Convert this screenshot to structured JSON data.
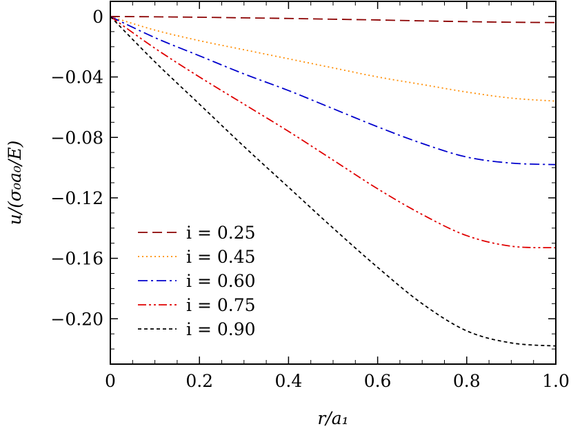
{
  "chart_data": {
    "type": "line",
    "title": "",
    "xlabel": "r/a₁",
    "ylabel": "u/(σ₀a₀/E)",
    "xlim": [
      0,
      1.0
    ],
    "ylim": [
      -0.23,
      0.01
    ],
    "grid": false,
    "legend_position": "bottom-left",
    "x_ticks": [
      {
        "value": 0,
        "label": "0"
      },
      {
        "value": 0.2,
        "label": "0.2"
      },
      {
        "value": 0.4,
        "label": "0.4"
      },
      {
        "value": 0.6,
        "label": "0.6"
      },
      {
        "value": 0.8,
        "label": "0.8"
      },
      {
        "value": 1.0,
        "label": "1.0"
      }
    ],
    "y_ticks": [
      {
        "value": 0,
        "label": "0"
      },
      {
        "value": -0.04,
        "label": "−0.04"
      },
      {
        "value": -0.08,
        "label": "−0.08"
      },
      {
        "value": -0.12,
        "label": "−0.12"
      },
      {
        "value": -0.16,
        "label": "−0.16"
      },
      {
        "value": -0.2,
        "label": "−0.20"
      }
    ],
    "x": [
      0,
      0.1,
      0.2,
      0.3,
      0.4,
      0.5,
      0.6,
      0.7,
      0.8,
      0.9,
      1.0
    ],
    "series": [
      {
        "name": "i = 0.25",
        "color": "#8b0000",
        "dash": "dashed",
        "values": [
          0,
          -0.0002,
          -0.0005,
          -0.0009,
          -0.0013,
          -0.0018,
          -0.0023,
          -0.0029,
          -0.0034,
          -0.0038,
          -0.004
        ]
      },
      {
        "name": "i = 0.45",
        "color": "#ff8c00",
        "dash": "dotted",
        "values": [
          0,
          -0.009,
          -0.016,
          -0.022,
          -0.028,
          -0.034,
          -0.04,
          -0.045,
          -0.05,
          -0.054,
          -0.056
        ]
      },
      {
        "name": "i = 0.60",
        "color": "#0000cd",
        "dash": "dashdot",
        "values": [
          0,
          -0.014,
          -0.026,
          -0.038,
          -0.049,
          -0.061,
          -0.073,
          -0.084,
          -0.093,
          -0.097,
          -0.098
        ]
      },
      {
        "name": "i = 0.75",
        "color": "#e00000",
        "dash": "dashdotdot",
        "values": [
          0,
          -0.021,
          -0.04,
          -0.058,
          -0.076,
          -0.095,
          -0.114,
          -0.131,
          -0.145,
          -0.152,
          -0.153
        ]
      },
      {
        "name": "i = 0.90",
        "color": "#000000",
        "dash": "shortdash",
        "values": [
          0,
          -0.03,
          -0.058,
          -0.086,
          -0.113,
          -0.14,
          -0.166,
          -0.19,
          -0.208,
          -0.216,
          -0.218
        ]
      }
    ]
  }
}
